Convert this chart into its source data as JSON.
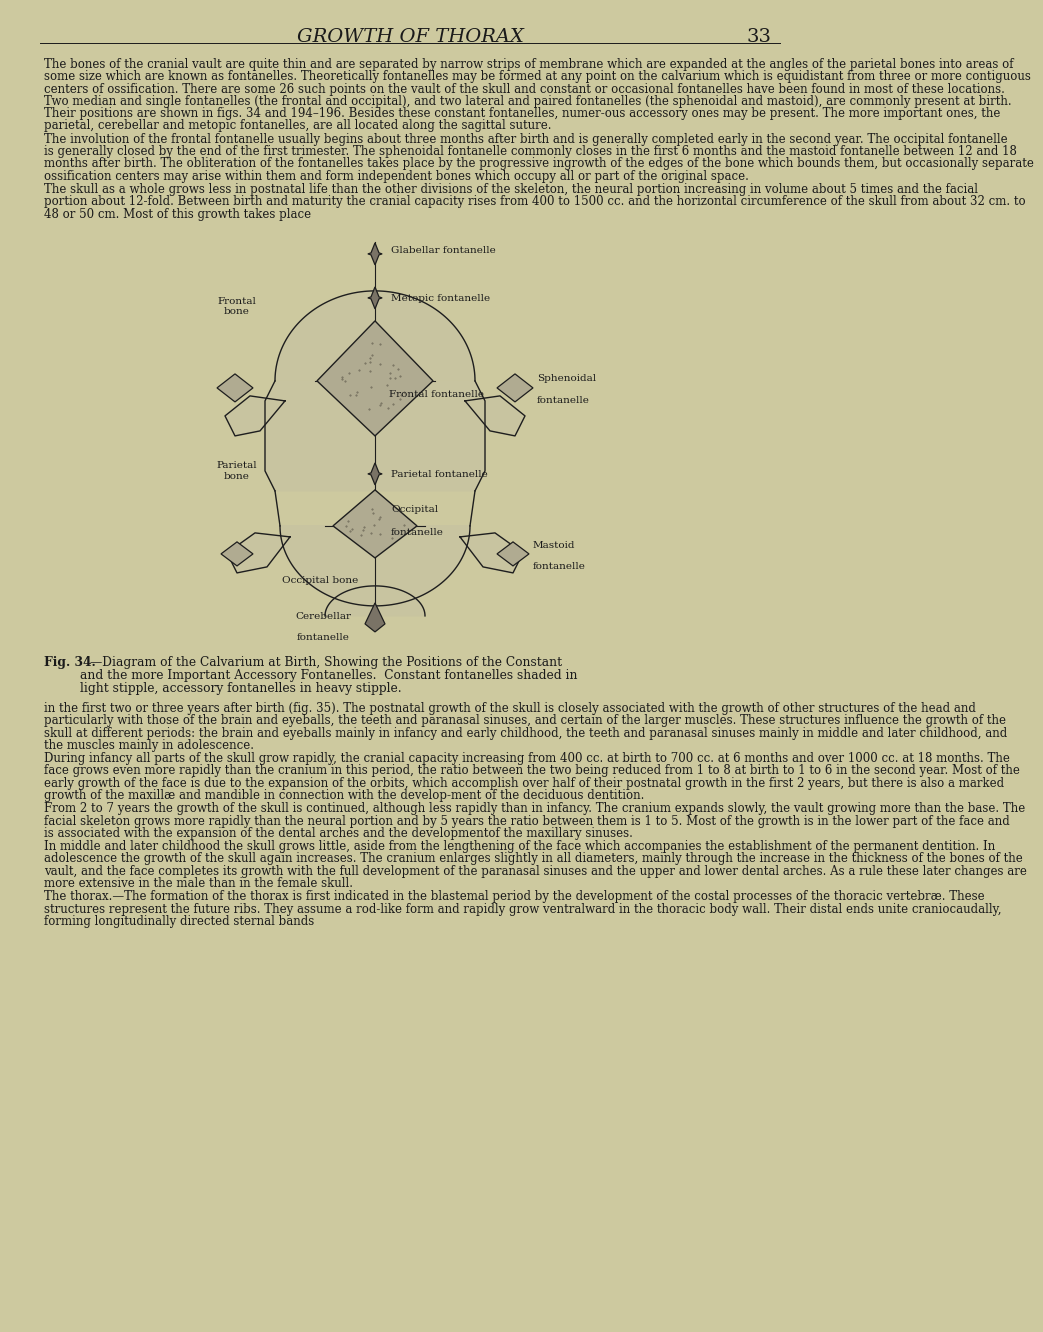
{
  "bg_color": "#cdc99f",
  "title": "GROWTH OF THORAX",
  "page_num": "33",
  "title_font_size": 14,
  "body_font_size": 8.5,
  "text_color": "#1a1a1a",
  "paragraph1": "    The bones of the cranial vault are quite thin and are separated by narrow strips of membrane which are expanded at the angles of the parietal bones into areas of some size which are known as fontanelles.   Theoretically fontanelles may be formed at any point on the calvarium which is equidistant from three or more contiguous centers of ossification.  There are some 26 such points on the vault of the skull and constant or occasional fontanelles have been found in most of these locations.  Two median and single fontanelles (the frontal and occipital), and two lateral and paired fontanelles (the sphenoidal and mastoid), are commonly present at birth. Their positions are shown in figs. 34 and 194–196.  Besides these constant fontanelles, numer­ous accessory ones may be present.  The more important ones, the parietal, cerebellar and metopic fontanelles, are all located along the sagittal suture.",
  "paragraph2": "    The involution of the frontal fontanelle usually begins about three months after birth and is generally completed early in the second year.  The occipital fontanelle is generally closed by the end of the first trimester.  The sphenoidal fontanelle commonly closes in the first 6 months and the mastoid fontanelle between 12 and 18 months after birth.  The obliteration of the fontanelles takes place by the progressive ingrowth of the edges of the bone which bounds them, but occasionally separate ossification centers may arise within them and form independent bones which occupy all or part of the original space.",
  "paragraph3": "    The skull as a whole grows less in postnatal life than the other divisions of the skeleton, the neural portion increasing in volume about 5 times and the facial portion about 12-fold. Between birth and maturity the cranial capacity rises from 400 to 1500 cc. and the horizontal circumference of the skull from about 32 cm. to 48 or 50 cm.  Most of this growth takes place",
  "paragraph4": "in the first two or three years after birth (fig. 35).  The postnatal growth of the skull is closely associated with the growth of other structures of the head and particularly with those of the brain and eyeballs, the teeth and paranasal sinuses, and certain of the larger muscles.  These structures influence the growth of the skull at different periods: the brain and eyeballs mainly in infancy and early childhood, the teeth and paranasal sinuses mainly in middle and later childhood, and the muscles mainly in adolescence.",
  "paragraph5": "    During infancy all parts of the skull grow rapidly, the cranial capacity increasing from 400 cc. at birth to 700 cc. at 6 months and over 1000 cc. at 18 months.  The face grows even more rapidly than the cranium in this period, the ratio between the two being reduced from 1 to 8 at birth to 1 to 6 in the second year.  Most of the early growth of the face is due to the expansion of the orbits, which accomplish over half of their postnatal growth in the first 2 years, but there is also a marked growth of the maxillæ and mandible in connection with the develop­ment of the deciduous dentition.",
  "paragraph6": "    From 2 to 7 years the growth of the skull is continued, although less rapidly than in infancy. The cranium expands slowly, the vault growing more than the base.  The facial skeleton grows more rapidly than the neural portion and by 5 years the ratio between them is 1 to 5.  Most of the growth is in the lower part of the face and is associated with the expansion of the dental arches and the development⁠of the maxillary sinuses.",
  "paragraph7": "    In middle and later childhood the skull grows little, aside from the lengthening of the face which accompanies the establishment of the permanent dentition.  In adolescence the growth of the skull again increases.  The cranium enlarges slightly in all diameters, mainly through the increase in the thickness of the bones of the vault, and the face completes its growth with the full development of the paranasal sinuses and the upper and lower dental arches.  As a rule these later changes are more extensive in the male than in the female skull.",
  "paragraph8": "    The thorax.—The formation of the thorax is first indicated in the blastemal period by the development of the costal processes of the thoracic vertebræ.  These structures represent the future ribs.  They assume a rod-like form and rapidly grow ventralward in the thoracic body wall.  Their distal ends unite craniocaudally, forming longitudinally directed sternal bands"
}
